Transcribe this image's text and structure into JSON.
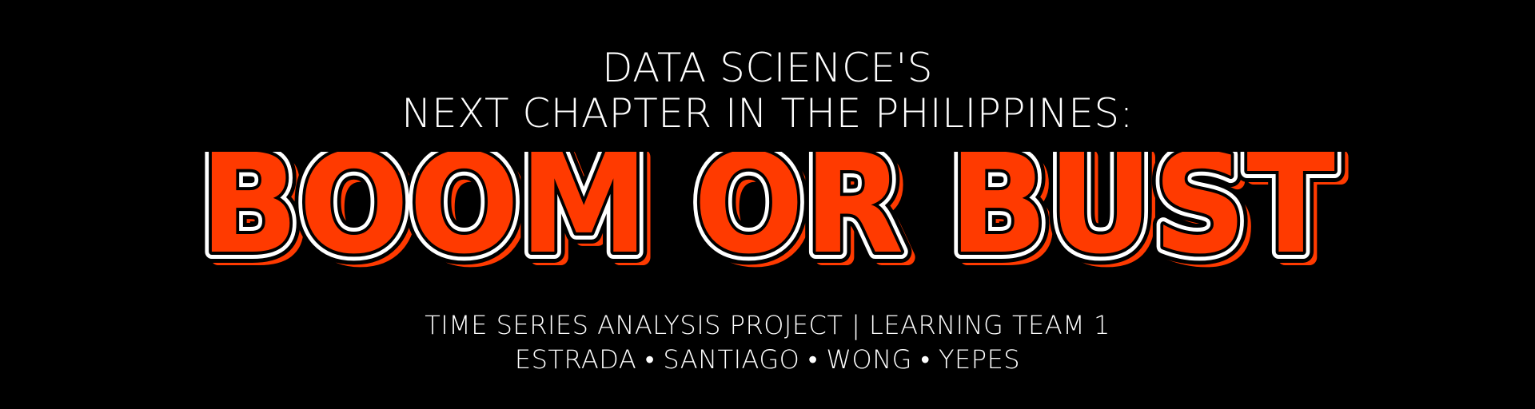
{
  "banner": {
    "heading_line_1": "DATA SCIENCE'S",
    "heading_line_2": "NEXT CHAPTER IN THE PHILIPPINES:",
    "hero_title": "BOOM OR BUST",
    "subtitle_line_1": "TIME SERIES ANALYSIS PROJECT | LEARNING TEAM 1",
    "subtitle_line_2": "ESTRADA • SANTIAGO • WONG • YEPES"
  },
  "colors": {
    "background": "#000000",
    "text": "#ffffff",
    "hero_fill": "#ff3a00",
    "hero_outline": "#ffffff",
    "hero_shadow": "#ff3a00"
  }
}
